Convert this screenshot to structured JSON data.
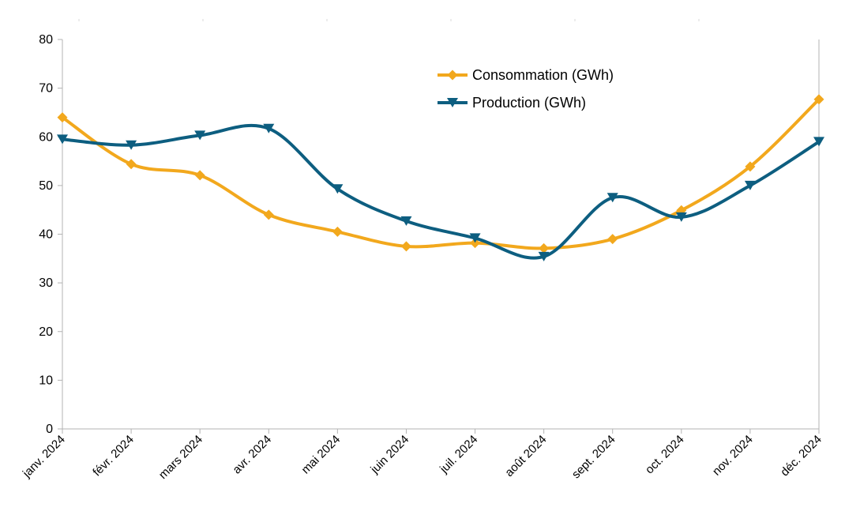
{
  "chart_data": {
    "type": "line",
    "title": "",
    "xlabel": "",
    "ylabel": "",
    "ylim": [
      0,
      80
    ],
    "yticks": [
      0,
      10,
      20,
      30,
      40,
      50,
      60,
      70,
      80
    ],
    "categories": [
      "janv. 2024",
      "févr. 2024",
      "mars 2024",
      "avr. 2024",
      "mai 2024",
      "juin 2024",
      "juil. 2024",
      "août 2024",
      "sept. 2024",
      "oct. 2024",
      "nov. 2024",
      "déc. 2024"
    ],
    "series": [
      {
        "name": "Consommation (GWh)",
        "color": "#f2a81d",
        "marker": "diamond",
        "values": [
          64,
          54.4,
          52.1,
          44,
          40.5,
          37.5,
          38.2,
          37.1,
          39,
          44.9,
          53.9,
          67.7
        ]
      },
      {
        "name": "Production (GWh)",
        "color": "#0d5e80",
        "marker": "triangle-down",
        "values": [
          59.5,
          58.3,
          60.3,
          61.7,
          49.3,
          42.7,
          39.2,
          35.4,
          47.5,
          43.5,
          50,
          59
        ]
      }
    ],
    "legend_position": "top-right-inside",
    "grid": false
  }
}
